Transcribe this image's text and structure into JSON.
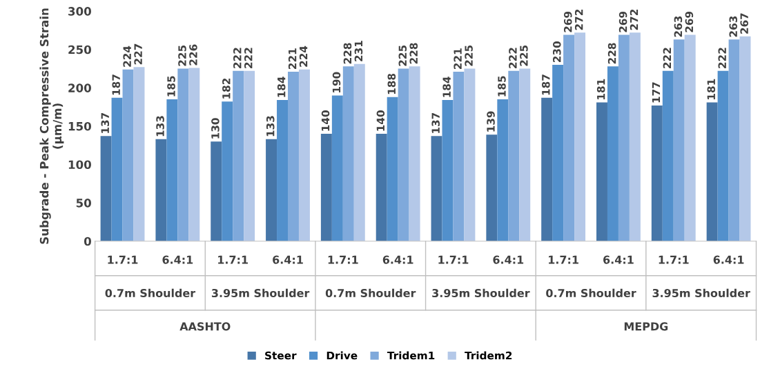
{
  "chart_data": {
    "type": "bar",
    "ylabel": "Subgrade - Peak Compressive Strain\n(µm/m)",
    "categories": [
      "1.7:1",
      "6.4:1",
      "1.7:1",
      "6.4:1",
      "1.7:1",
      "6.4:1",
      "1.7:1",
      "6.4:1",
      "1.7:1",
      "6.4:1",
      "1.7:1",
      "6.4:1"
    ],
    "annotations": [
      "0.7m Shoulder",
      "3.95m Shoulder",
      "0.7m Shoulder",
      "3.95m Shoulder",
      "0.7m Shoulder",
      "3.95m Shoulder",
      "AASHTO",
      "MEPDG"
    ],
    "series": [
      {
        "name": "Steer",
        "color": "#4676a8",
        "values": [
          137,
          133,
          130,
          133,
          140,
          140,
          137,
          139,
          187,
          181,
          177,
          181
        ]
      },
      {
        "name": "Drive",
        "color": "#5290cc",
        "values": [
          187,
          185,
          182,
          184,
          190,
          188,
          184,
          185,
          230,
          228,
          222,
          222
        ]
      },
      {
        "name": "Tridem1",
        "color": "#7fa9db",
        "values": [
          224,
          225,
          222,
          221,
          228,
          225,
          221,
          222,
          269,
          269,
          263,
          263
        ]
      },
      {
        "name": "Tridem2",
        "color": "#b4c8e8",
        "values": [
          227,
          226,
          222,
          224,
          231,
          228,
          225,
          225,
          272,
          272,
          269,
          267
        ]
      }
    ],
    "ylim": [
      0,
      300
    ],
    "yticks": [
      0,
      50,
      100,
      150,
      200,
      250,
      300
    ],
    "data_labels": true,
    "grid": false,
    "legend": "bottom"
  }
}
